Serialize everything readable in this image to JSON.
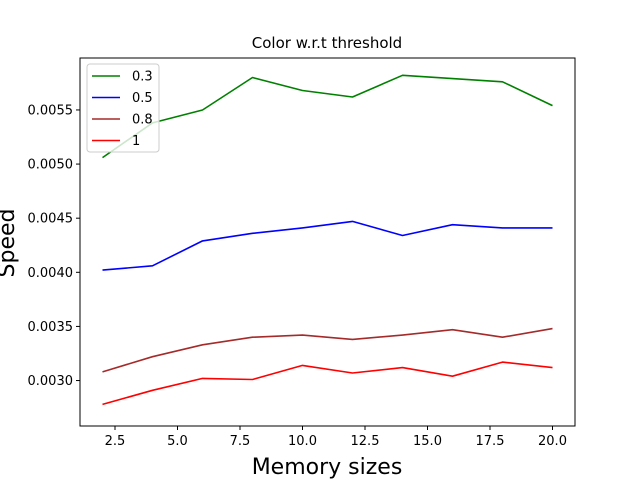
{
  "chart_data": {
    "type": "line",
    "title": "Color w.r.t threshold",
    "xlabel": "Memory sizes",
    "ylabel": "Speed",
    "xlim": [
      1.1,
      20.9
    ],
    "ylim": [
      0.00258,
      0.00598
    ],
    "xticks": [
      2.5,
      5.0,
      7.5,
      10.0,
      12.5,
      15.0,
      17.5,
      20.0
    ],
    "xtick_labels": [
      "2.5",
      "5.0",
      "7.5",
      "10.0",
      "12.5",
      "15.0",
      "17.5",
      "20.0"
    ],
    "yticks": [
      0.003,
      0.0035,
      0.004,
      0.0045,
      0.005,
      0.0055
    ],
    "ytick_labels": [
      "0.0030",
      "0.0035",
      "0.0040",
      "0.0045",
      "0.0050",
      "0.0055"
    ],
    "grid": false,
    "legend_position": "top-left",
    "x": [
      2,
      4,
      6,
      8,
      10,
      12,
      14,
      16,
      18,
      20
    ],
    "series": [
      {
        "name": "0.3",
        "color": "#008000",
        "values": [
          0.00506,
          0.00538,
          0.0055,
          0.0058,
          0.00568,
          0.00562,
          0.00582,
          0.00579,
          0.00576,
          0.00554
        ]
      },
      {
        "name": "0.5",
        "color": "#0000ff",
        "values": [
          0.00402,
          0.00406,
          0.00429,
          0.00436,
          0.00441,
          0.00447,
          0.00434,
          0.00444,
          0.00441,
          0.00441
        ]
      },
      {
        "name": "0.8",
        "color": "#a52a2a",
        "values": [
          0.00308,
          0.00322,
          0.00333,
          0.0034,
          0.00342,
          0.00338,
          0.00342,
          0.00347,
          0.0034,
          0.00348
        ]
      },
      {
        "name": "1",
        "color": "#ff0000",
        "values": [
          0.00278,
          0.00291,
          0.00302,
          0.00301,
          0.00314,
          0.00307,
          0.00312,
          0.00304,
          0.00317,
          0.00312
        ]
      }
    ]
  }
}
